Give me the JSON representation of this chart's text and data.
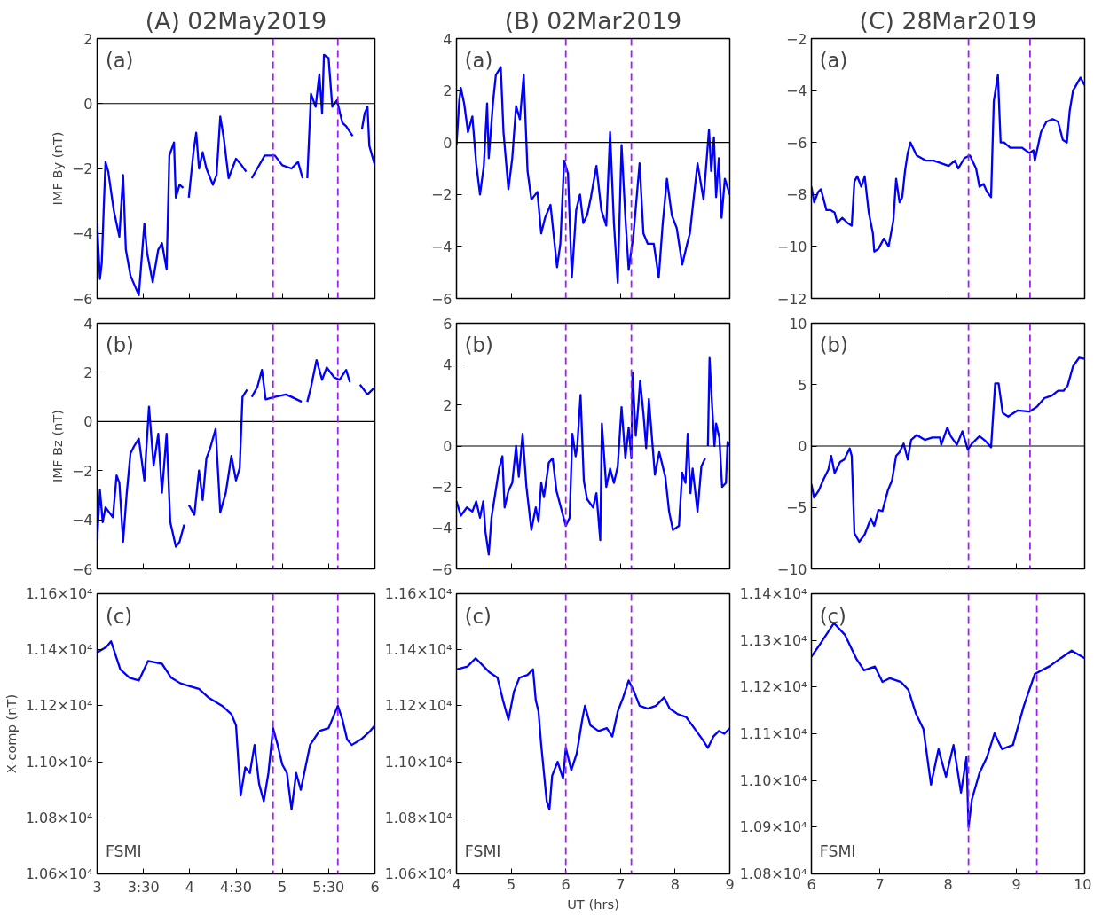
{
  "chart_data": [
    {
      "type": "line",
      "title": "(A) 02May2019",
      "ylabel": "IMF By (nT)",
      "annotations": [
        "(a)"
      ],
      "tick_labels": "y",
      "xlim": [
        3,
        6
      ],
      "xticks": [
        3,
        3.5,
        4,
        4.5,
        5,
        5.5,
        6
      ],
      "ylim": [
        -6,
        2
      ],
      "yticks": [
        -6,
        -4,
        -2,
        0,
        2
      ],
      "ref_lines": [
        {
          "axis": "y",
          "value": 0,
          "color": "#000000",
          "line_style": "solid"
        },
        {
          "axis": "x",
          "value": 4.9,
          "color": "#a020f0",
          "line_style": "dashed"
        },
        {
          "axis": "x",
          "value": 5.6,
          "color": "#a020f0",
          "line_style": "dashed"
        }
      ],
      "series": [
        {
          "color": "#0000ff",
          "x": [
            3.0,
            3.03,
            3.05,
            3.07,
            3.09,
            3.12,
            3.18,
            3.24,
            3.28,
            3.31,
            3.36,
            3.45,
            3.51,
            3.54,
            3.6,
            3.66,
            3.7,
            3.75,
            3.78,
            3.83,
            3.85,
            3.89,
            3.93,
            3.96,
            3.99,
            4.04,
            4.07,
            4.1,
            4.14,
            4.18,
            4.25,
            4.29,
            4.33,
            4.37,
            4.42,
            4.5,
            4.56,
            4.61,
            4.64,
            4.67,
            4.73,
            4.81,
            4.92,
            5.0,
            5.1,
            5.17,
            5.22,
            5.25,
            5.27,
            5.31,
            5.36,
            5.4,
            5.43,
            5.45,
            5.5,
            5.54,
            5.59,
            5.65,
            5.69,
            5.76,
            5.8,
            5.86,
            5.89,
            5.92,
            5.94,
            6.0
          ],
          "values": [
            -3.7,
            -5.4,
            -4.9,
            -3.3,
            -1.8,
            -2.1,
            -3.3,
            -4.1,
            -2.2,
            -4.5,
            -5.3,
            -5.9,
            -3.7,
            -4.6,
            -5.5,
            -4.5,
            -4.3,
            -5.1,
            -1.6,
            -1.2,
            -2.9,
            -2.5,
            -2.6,
            null,
            -2.9,
            -1.5,
            -0.9,
            -2.0,
            -1.5,
            -2.0,
            -2.5,
            -2.2,
            -0.4,
            -1.1,
            -2.3,
            -1.7,
            -1.9,
            -2.1,
            null,
            -2.3,
            -2.0,
            -1.6,
            -1.6,
            -1.9,
            -2.0,
            -1.8,
            -2.3,
            null,
            -2.3,
            0.3,
            -0.1,
            0.9,
            -0.3,
            1.5,
            1.4,
            -0.1,
            0.1,
            -0.6,
            -0.7,
            -1.0,
            null,
            -0.8,
            -0.3,
            -0.1,
            -1.3,
            -1.9
          ]
        }
      ]
    },
    {
      "type": "line",
      "title": "(B) 02Mar2019",
      "annotations": [
        "(a)"
      ],
      "tick_labels": "y",
      "xlim": [
        4,
        9
      ],
      "xticks": [
        4,
        5,
        6,
        7,
        8,
        9
      ],
      "ylim": [
        -6,
        4
      ],
      "yticks": [
        -6,
        -4,
        -2,
        0,
        2,
        4
      ],
      "ref_lines": [
        {
          "axis": "y",
          "value": 0,
          "color": "#000000",
          "line_style": "solid"
        },
        {
          "axis": "x",
          "value": 6.0,
          "color": "#a020f0",
          "line_style": "dashed"
        },
        {
          "axis": "x",
          "value": 7.2,
          "color": "#a020f0",
          "line_style": "dashed"
        }
      ],
      "series": [
        {
          "color": "#0000ff",
          "x": [
            4.0,
            4.05,
            4.08,
            4.14,
            4.21,
            4.29,
            4.36,
            4.43,
            4.5,
            4.56,
            4.59,
            4.67,
            4.72,
            4.81,
            4.86,
            4.95,
            5.02,
            5.09,
            5.16,
            5.23,
            5.3,
            5.37,
            5.48,
            5.55,
            5.62,
            5.72,
            5.84,
            5.9,
            5.97,
            6.04,
            6.11,
            6.19,
            6.26,
            6.32,
            6.39,
            6.46,
            6.56,
            6.65,
            6.74,
            6.81,
            6.88,
            6.95,
            7.02,
            7.09,
            7.15,
            7.24,
            7.35,
            7.42,
            7.5,
            7.61,
            7.7,
            7.77,
            7.85,
            7.94,
            8.03,
            8.13,
            8.22,
            8.27,
            8.41,
            8.52,
            8.62,
            8.66,
            8.71,
            8.75,
            8.8,
            8.85,
            8.91,
            9.0
          ],
          "values": [
            -0.1,
            1.6,
            2.1,
            1.5,
            0.4,
            1.0,
            -0.8,
            -2.0,
            -0.9,
            1.5,
            -0.6,
            1.6,
            2.6,
            2.9,
            0.4,
            -1.8,
            -0.6,
            1.4,
            0.9,
            2.6,
            -1.1,
            -2.2,
            -1.9,
            -3.5,
            -2.9,
            -2.4,
            -4.8,
            -3.9,
            -0.7,
            -1.2,
            -5.2,
            -2.6,
            -2.0,
            -3.1,
            -2.8,
            -2.1,
            -0.9,
            -2.6,
            -3.2,
            0.4,
            -3.1,
            -5.4,
            -0.1,
            -2.9,
            -4.9,
            -3.5,
            -0.8,
            -3.5,
            -3.9,
            -3.9,
            -5.2,
            -3.2,
            -1.4,
            -2.8,
            -3.3,
            -4.7,
            -3.9,
            -3.5,
            -0.8,
            -2.2,
            0.5,
            -1.1,
            0.2,
            -2.1,
            -0.6,
            -2.9,
            -1.4,
            -2.0
          ]
        }
      ]
    },
    {
      "type": "line",
      "title": "(C) 28Mar2019",
      "annotations": [
        "(a)"
      ],
      "tick_labels": "y",
      "xlim": [
        6,
        10
      ],
      "xticks": [
        6,
        7,
        8,
        9,
        10
      ],
      "ylim": [
        -12,
        -2
      ],
      "yticks": [
        -12,
        -10,
        -8,
        -6,
        -4,
        -2
      ],
      "ref_lines": [
        {
          "axis": "x",
          "value": 8.3,
          "color": "#a020f0",
          "line_style": "dashed"
        },
        {
          "axis": "x",
          "value": 9.2,
          "color": "#a020f0",
          "line_style": "dashed"
        }
      ],
      "series": [
        {
          "color": "#0000ff",
          "x": [
            6.0,
            6.04,
            6.1,
            6.14,
            6.22,
            6.28,
            6.34,
            6.38,
            6.45,
            6.53,
            6.59,
            6.63,
            6.67,
            6.73,
            6.78,
            6.84,
            6.9,
            6.92,
            6.98,
            7.06,
            7.13,
            7.2,
            7.24,
            7.29,
            7.33,
            7.37,
            7.41,
            7.45,
            7.54,
            7.68,
            7.79,
            7.9,
            8.01,
            8.1,
            8.15,
            8.24,
            8.32,
            8.41,
            8.46,
            8.52,
            8.57,
            8.63,
            8.67,
            8.73,
            8.77,
            8.82,
            8.91,
            9.08,
            9.19,
            9.25,
            9.27,
            9.36,
            9.44,
            9.53,
            9.61,
            9.68,
            9.74,
            9.78,
            9.83,
            9.94,
            10.0
          ],
          "values": [
            -7.7,
            -8.3,
            -7.9,
            -7.8,
            -8.6,
            -8.6,
            -8.7,
            -9.1,
            -8.9,
            -9.1,
            -9.2,
            -7.5,
            -7.3,
            -7.7,
            -7.3,
            -8.7,
            -9.5,
            -10.2,
            -10.1,
            -9.7,
            -10.0,
            -9.0,
            -7.4,
            -8.3,
            -8.1,
            -7.1,
            -6.4,
            -6.0,
            -6.5,
            -6.7,
            -6.7,
            -6.8,
            -6.9,
            -6.7,
            -7.0,
            -6.6,
            -6.5,
            -7.0,
            -7.7,
            -7.6,
            -7.9,
            -8.1,
            -4.4,
            -3.4,
            -6.0,
            -6.0,
            -6.2,
            -6.2,
            -6.4,
            -6.3,
            -6.7,
            -5.6,
            -5.2,
            -5.1,
            -5.2,
            -5.9,
            -6.0,
            -4.8,
            -4.0,
            -3.5,
            -3.8
          ]
        }
      ]
    },
    {
      "type": "line",
      "ylabel": "IMF Bz (nT)",
      "annotations": [
        "(b)"
      ],
      "tick_labels": "y",
      "xlim": [
        3,
        6
      ],
      "xticks": [
        3,
        3.5,
        4,
        4.5,
        5,
        5.5,
        6
      ],
      "ylim": [
        -6,
        4
      ],
      "yticks": [
        -6,
        -4,
        -2,
        0,
        2,
        4
      ],
      "ref_lines": [
        {
          "axis": "y",
          "value": 0,
          "color": "#000000",
          "line_style": "solid"
        },
        {
          "axis": "x",
          "value": 4.9,
          "color": "#a020f0",
          "line_style": "dashed"
        },
        {
          "axis": "x",
          "value": 5.6,
          "color": "#a020f0",
          "line_style": "dashed"
        }
      ],
      "series": [
        {
          "color": "#0000ff",
          "x": [
            3.0,
            3.03,
            3.06,
            3.09,
            3.13,
            3.17,
            3.21,
            3.24,
            3.28,
            3.32,
            3.36,
            3.4,
            3.45,
            3.51,
            3.56,
            3.61,
            3.66,
            3.7,
            3.75,
            3.79,
            3.85,
            3.89,
            3.94,
            3.96,
            3.99,
            4.05,
            4.1,
            4.14,
            4.18,
            4.22,
            4.28,
            4.33,
            4.39,
            4.45,
            4.5,
            4.54,
            4.57,
            4.62,
            4.64,
            4.67,
            4.73,
            4.78,
            4.82,
            4.92,
            5.04,
            5.1,
            5.21,
            5.24,
            5.27,
            5.31,
            5.37,
            5.43,
            5.48,
            5.56,
            5.62,
            5.69,
            5.73,
            5.78,
            5.84,
            5.92,
            6.0
          ],
          "values": [
            -4.8,
            -2.8,
            -4.1,
            -3.5,
            -3.7,
            -3.9,
            -2.2,
            -2.5,
            -4.9,
            -2.9,
            -1.3,
            -1.0,
            -0.7,
            -2.4,
            0.6,
            -1.8,
            -0.5,
            -2.9,
            -0.5,
            -4.1,
            -5.1,
            -4.9,
            -4.2,
            null,
            -3.4,
            -3.8,
            -2.0,
            -3.2,
            -1.5,
            -1.1,
            -0.3,
            -3.7,
            -2.9,
            -1.4,
            -2.4,
            -1.9,
            1.0,
            1.3,
            null,
            1.0,
            1.4,
            2.1,
            0.9,
            1.0,
            1.1,
            1.0,
            0.8,
            null,
            0.8,
            1.4,
            2.5,
            1.7,
            2.2,
            1.8,
            1.7,
            2.1,
            1.6,
            null,
            1.5,
            1.1,
            1.4
          ]
        }
      ]
    },
    {
      "type": "line",
      "annotations": [
        "(b)"
      ],
      "tick_labels": "y",
      "xlim": [
        4,
        9
      ],
      "xticks": [
        4,
        5,
        6,
        7,
        8,
        9
      ],
      "ylim": [
        -6,
        6
      ],
      "yticks": [
        -6,
        -4,
        -2,
        0,
        2,
        4,
        6
      ],
      "ref_lines": [
        {
          "axis": "y",
          "value": 0,
          "color": "#000000",
          "line_style": "solid"
        },
        {
          "axis": "x",
          "value": 6.0,
          "color": "#a020f0",
          "line_style": "dashed"
        },
        {
          "axis": "x",
          "value": 7.2,
          "color": "#a020f0",
          "line_style": "dashed"
        }
      ],
      "series": [
        {
          "color": "#0000ff",
          "x": [
            4.0,
            4.08,
            4.19,
            4.29,
            4.36,
            4.43,
            4.49,
            4.53,
            4.59,
            4.64,
            4.71,
            4.78,
            4.84,
            4.88,
            4.95,
            5.02,
            5.09,
            5.14,
            5.21,
            5.28,
            5.37,
            5.45,
            5.5,
            5.55,
            5.6,
            5.69,
            5.76,
            5.83,
            5.9,
            6.0,
            6.07,
            6.12,
            6.18,
            6.21,
            6.27,
            6.33,
            6.39,
            6.5,
            6.56,
            6.63,
            6.66,
            6.74,
            6.81,
            6.88,
            6.95,
            7.02,
            7.09,
            7.15,
            7.2,
            7.22,
            7.28,
            7.33,
            7.36,
            7.42,
            7.47,
            7.52,
            7.57,
            7.63,
            7.71,
            7.82,
            7.89,
            7.96,
            8.07,
            8.13,
            8.19,
            8.23,
            8.28,
            8.32,
            8.41,
            8.48,
            8.55,
            8.58,
            8.6,
            8.63,
            8.67,
            8.72,
            8.75,
            8.81,
            8.86,
            8.93,
            8.96,
            9.0
          ],
          "values": [
            -2.7,
            -3.4,
            -3.0,
            -3.2,
            -2.7,
            -3.5,
            -2.7,
            -4.2,
            -5.3,
            -3.5,
            -2.3,
            -1.1,
            -0.5,
            -3.0,
            -2.2,
            -1.8,
            0.0,
            -1.5,
            0.6,
            -2.0,
            -4.1,
            -3.0,
            -3.7,
            -1.8,
            -2.5,
            -0.8,
            -0.6,
            -2.2,
            -2.9,
            -3.9,
            -3.5,
            0.6,
            -0.5,
            0.0,
            2.5,
            -1.7,
            -2.6,
            -3.0,
            -2.3,
            -4.6,
            1.1,
            -2.0,
            -1.1,
            -1.8,
            -1.0,
            1.9,
            -0.6,
            0.9,
            -0.6,
            3.6,
            0.5,
            2.1,
            3.2,
            1.6,
            -0.1,
            2.3,
            0.6,
            -1.4,
            -0.3,
            -1.5,
            -3.2,
            -4.1,
            -3.9,
            -1.3,
            -1.8,
            0.6,
            -2.3,
            -1.1,
            -3.2,
            -1.0,
            -0.6,
            null,
            0.0,
            4.3,
            2.3,
            0.0,
            1.1,
            0.4,
            -2.0,
            -1.8,
            0.2,
            0.0
          ]
        }
      ]
    },
    {
      "type": "line",
      "annotations": [
        "(b)"
      ],
      "tick_labels": "y",
      "xlim": [
        6,
        10
      ],
      "xticks": [
        6,
        7,
        8,
        9,
        10
      ],
      "ylim": [
        -10,
        10
      ],
      "yticks": [
        -10,
        -5,
        0,
        5,
        10
      ],
      "ref_lines": [
        {
          "axis": "y",
          "value": 0,
          "color": "#000000",
          "line_style": "solid"
        },
        {
          "axis": "x",
          "value": 8.3,
          "color": "#a020f0",
          "line_style": "dashed"
        },
        {
          "axis": "x",
          "value": 9.2,
          "color": "#a020f0",
          "line_style": "dashed"
        }
      ],
      "series": [
        {
          "color": "#0000ff",
          "x": [
            6.0,
            6.04,
            6.11,
            6.17,
            6.25,
            6.29,
            6.34,
            6.42,
            6.48,
            6.56,
            6.59,
            6.63,
            6.7,
            6.78,
            6.87,
            6.92,
            6.98,
            7.04,
            7.12,
            7.18,
            7.24,
            7.29,
            7.35,
            7.41,
            7.46,
            7.54,
            7.66,
            7.77,
            7.88,
            7.9,
            7.99,
            8.04,
            8.13,
            8.21,
            8.29,
            8.35,
            8.46,
            8.55,
            8.63,
            8.69,
            8.74,
            8.8,
            8.88,
            9.02,
            9.19,
            9.3,
            9.41,
            9.52,
            9.61,
            9.69,
            9.75,
            9.83,
            9.92,
            10.0
          ],
          "values": [
            -3.1,
            -4.2,
            -3.6,
            -2.8,
            -1.9,
            -0.8,
            -2.2,
            -1.3,
            -1.1,
            -0.2,
            -0.8,
            -7.1,
            -7.8,
            -7.2,
            -5.9,
            -6.5,
            -5.2,
            -5.3,
            -3.6,
            -2.8,
            -0.8,
            -0.5,
            0.2,
            -1.1,
            0.5,
            0.9,
            0.5,
            0.7,
            0.7,
            0.1,
            1.5,
            0.8,
            0.1,
            1.2,
            -0.3,
            0.2,
            0.8,
            0.4,
            -0.1,
            5.1,
            5.1,
            2.7,
            2.4,
            2.9,
            2.8,
            3.2,
            3.9,
            4.1,
            4.5,
            4.5,
            4.9,
            6.5,
            7.2,
            7.1
          ]
        }
      ]
    },
    {
      "type": "line",
      "ylabel": "X-comp (nT)",
      "annotations": [
        "(c)",
        "FSMI"
      ],
      "xlim": [
        3,
        6
      ],
      "xticks": [
        3,
        {
          "value": 3.5,
          "label": "3:30"
        },
        4,
        {
          "value": 4.5,
          "label": "4:30"
        },
        5,
        {
          "value": 5.5,
          "label": "5:30"
        },
        6
      ],
      "ylim": [
        10600,
        11600
      ],
      "yticks": [
        {
          "value": 10600,
          "label": "1.06×10⁴"
        },
        {
          "value": 10800,
          "label": "1.08×10⁴"
        },
        {
          "value": 11000,
          "label": "1.10×10⁴"
        },
        {
          "value": 11200,
          "label": "1.12×10⁴"
        },
        {
          "value": 11400,
          "label": "1.14×10⁴"
        },
        {
          "value": 11600,
          "label": "1.16×10⁴"
        }
      ],
      "ref_lines": [
        {
          "axis": "x",
          "value": 4.9,
          "color": "#a020f0",
          "line_style": "dashed"
        },
        {
          "axis": "x",
          "value": 5.6,
          "color": "#a020f0",
          "line_style": "dashed"
        }
      ],
      "series": [
        {
          "color": "#0000ff",
          "x": [
            3.0,
            3.1,
            3.15,
            3.25,
            3.35,
            3.45,
            3.55,
            3.7,
            3.8,
            3.9,
            4.0,
            4.1,
            4.2,
            4.35,
            4.45,
            4.5,
            4.55,
            4.6,
            4.65,
            4.7,
            4.75,
            4.8,
            4.85,
            4.9,
            4.95,
            5.0,
            5.05,
            5.1,
            5.15,
            5.2,
            5.25,
            5.3,
            5.4,
            5.5,
            5.6,
            5.65,
            5.7,
            5.75,
            5.85,
            5.95,
            6.0
          ],
          "values": [
            11390,
            11410,
            11430,
            11330,
            11300,
            11290,
            11360,
            11350,
            11300,
            11280,
            11270,
            11260,
            11230,
            11200,
            11170,
            11130,
            10880,
            10980,
            10960,
            11060,
            10920,
            10860,
            10960,
            11120,
            11060,
            10990,
            10960,
            10830,
            10960,
            10900,
            10980,
            11060,
            11110,
            11120,
            11200,
            11150,
            11080,
            11060,
            11080,
            11110,
            11130
          ]
        }
      ]
    },
    {
      "type": "line",
      "xlabel": "UT (hrs)",
      "annotations": [
        "(c)",
        "FSMI"
      ],
      "xlim": [
        4,
        9
      ],
      "xticks": [
        4,
        5,
        6,
        7,
        8,
        9
      ],
      "ylim": [
        10600,
        11600
      ],
      "yticks": [
        {
          "value": 10600,
          "label": "1.06×10⁴"
        },
        {
          "value": 10800,
          "label": "1.08×10⁴"
        },
        {
          "value": 11000,
          "label": "1.10×10⁴"
        },
        {
          "value": 11200,
          "label": "1.12×10⁴"
        },
        {
          "value": 11400,
          "label": "1.14×10⁴"
        },
        {
          "value": 11600,
          "label": "1.16×10⁴"
        }
      ],
      "ref_lines": [
        {
          "axis": "x",
          "value": 6.0,
          "color": "#a020f0",
          "line_style": "dashed"
        },
        {
          "axis": "x",
          "value": 7.2,
          "color": "#a020f0",
          "line_style": "dashed"
        }
      ],
      "series": [
        {
          "color": "#0000ff",
          "x": [
            4.0,
            4.2,
            4.35,
            4.5,
            4.6,
            4.75,
            4.85,
            4.95,
            5.05,
            5.15,
            5.3,
            5.4,
            5.45,
            5.5,
            5.55,
            5.6,
            5.65,
            5.7,
            5.75,
            5.85,
            5.95,
            6.0,
            6.1,
            6.2,
            6.3,
            6.35,
            6.45,
            6.6,
            6.75,
            6.85,
            6.95,
            7.05,
            7.15,
            7.25,
            7.35,
            7.5,
            7.65,
            7.8,
            7.9,
            8.05,
            8.2,
            8.35,
            8.5,
            8.6,
            8.7,
            8.8,
            8.9,
            9.0
          ],
          "values": [
            11330,
            11340,
            11370,
            11340,
            11320,
            11300,
            11220,
            11150,
            11250,
            11300,
            11310,
            11330,
            11220,
            11180,
            11060,
            10960,
            10860,
            10830,
            10950,
            11000,
            10940,
            11050,
            10970,
            11030,
            11150,
            11200,
            11130,
            11110,
            11120,
            11090,
            11180,
            11230,
            11290,
            11250,
            11200,
            11190,
            11200,
            11230,
            11190,
            11170,
            11160,
            11120,
            11080,
            11050,
            11090,
            11110,
            11100,
            11120
          ]
        }
      ]
    },
    {
      "type": "line",
      "annotations": [
        "(c)",
        "FSMI"
      ],
      "xlim": [
        6,
        10
      ],
      "xticks": [
        6,
        7,
        8,
        9,
        10
      ],
      "ylim": [
        10800,
        11400
      ],
      "yticks": [
        {
          "value": 10800,
          "label": "1.08×10⁴"
        },
        {
          "value": 10900,
          "label": "1.09×10⁴"
        },
        {
          "value": 11000,
          "label": "1.10×10⁴"
        },
        {
          "value": 11100,
          "label": "1.11×10⁴"
        },
        {
          "value": 11200,
          "label": "1.12×10⁴"
        },
        {
          "value": 11300,
          "label": "1.13×10⁴"
        },
        {
          "value": 11400,
          "label": "1.14×10⁴"
        }
      ],
      "ref_lines": [
        {
          "axis": "x",
          "value": 8.3,
          "color": "#a020f0",
          "line_style": "dashed"
        },
        {
          "axis": "x",
          "value": 9.3,
          "color": "#a020f0",
          "line_style": "dashed"
        }
      ],
      "series": [
        {
          "color": "#0000ff",
          "x": [
            6.0,
            6.14,
            6.33,
            6.49,
            6.66,
            6.77,
            6.93,
            7.04,
            7.15,
            7.31,
            7.42,
            7.53,
            7.64,
            7.75,
            7.86,
            7.97,
            8.08,
            8.19,
            8.27,
            8.3,
            8.35,
            8.46,
            8.57,
            8.68,
            8.79,
            8.95,
            9.11,
            9.27,
            9.49,
            9.65,
            9.81,
            10.0
          ],
          "values": [
            11265,
            11295,
            11337,
            11312,
            11260,
            11236,
            11244,
            11211,
            11219,
            11211,
            11194,
            11143,
            11110,
            10991,
            11067,
            11008,
            11076,
            10974,
            11050,
            10900,
            10960,
            11016,
            11050,
            11101,
            11067,
            11076,
            11160,
            11228,
            11245,
            11262,
            11278,
            11262
          ]
        }
      ]
    }
  ]
}
